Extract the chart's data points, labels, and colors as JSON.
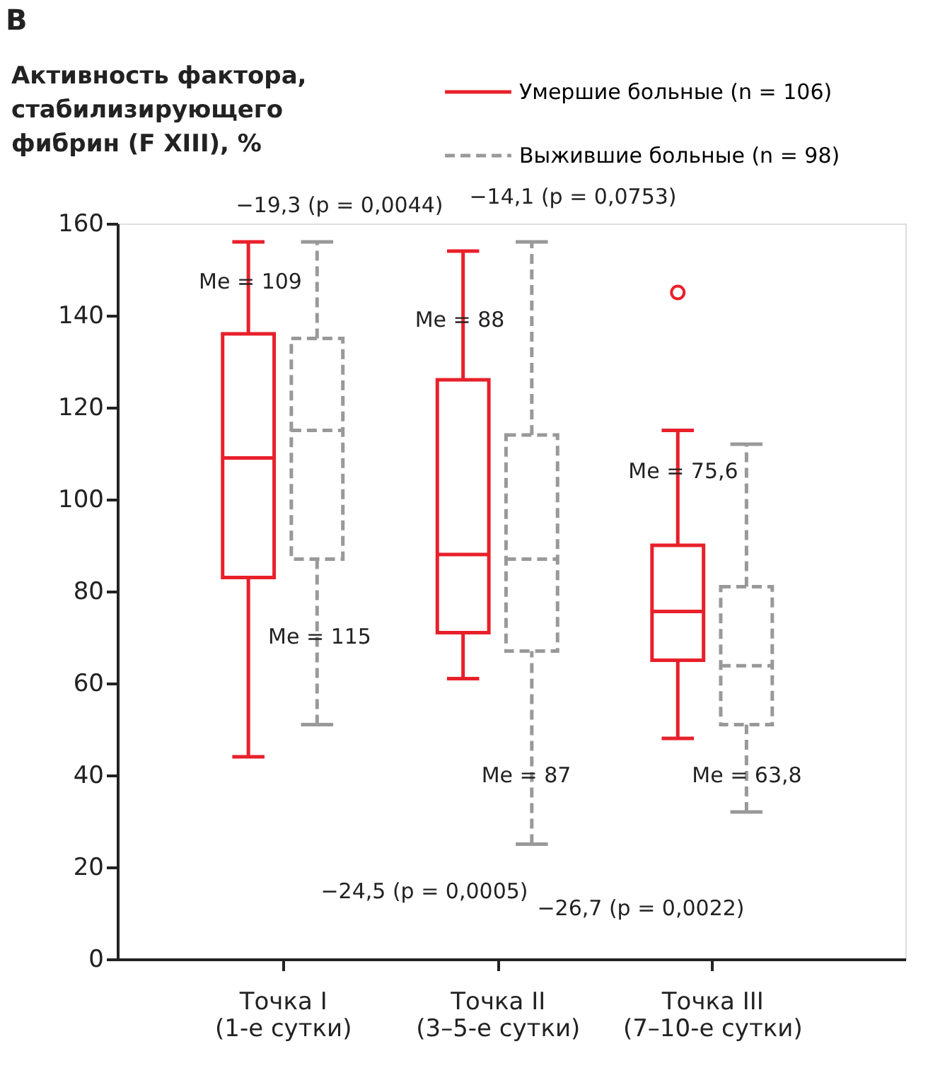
{
  "chart_data": {
    "type": "box",
    "title": "B",
    "ylabel": "Активность фактора,\nстабилизирующего\nфибрин (F XIII), %",
    "categories": [
      "Точка I\n(1-е сутки)",
      "Точка II\n(3–5-е сутки)",
      "Точка III\n(7–10-е сутки)"
    ],
    "ylim": [
      0,
      160
    ],
    "yticks": [
      0,
      20,
      40,
      60,
      80,
      100,
      120,
      140,
      160
    ],
    "grid": false,
    "legend": "top right",
    "series": [
      {
        "name": "Умершие больные (n = 106)",
        "color": "#e8202a",
        "line_style": "solid",
        "boxes": [
          {
            "low": 44,
            "q1": 83,
            "median": 109,
            "q3": 136,
            "high": 156
          },
          {
            "low": 61,
            "q1": 71,
            "median": 88,
            "q3": 126,
            "high": 154
          },
          {
            "low": 48,
            "q1": 65,
            "median": 75.6,
            "q3": 90,
            "high": 115,
            "outliers": [
              145
            ]
          }
        ]
      },
      {
        "name": "Выжившие больные (n = 98)",
        "color": "#999999",
        "line_style": "dashed",
        "boxes": [
          {
            "low": 51,
            "q1": 87,
            "median": 115,
            "q3": 135,
            "high": 156
          },
          {
            "low": 25,
            "q1": 67,
            "median": 87,
            "q3": 114,
            "high": 156
          },
          {
            "low": 32,
            "q1": 51,
            "median": 63.8,
            "q3": 81,
            "high": 112
          }
        ]
      }
    ],
    "annotations": [
      "Me = 109",
      "Me = 115",
      "Me = 88",
      "Me = 87",
      "Me = 75,6",
      "Me = 63,8",
      "−19,3 (p = 0,0044)",
      "−14,1 (p = 0,0753)",
      "−24,5 (p = 0,0005)",
      "−26,7 (p = 0,0022)"
    ]
  }
}
